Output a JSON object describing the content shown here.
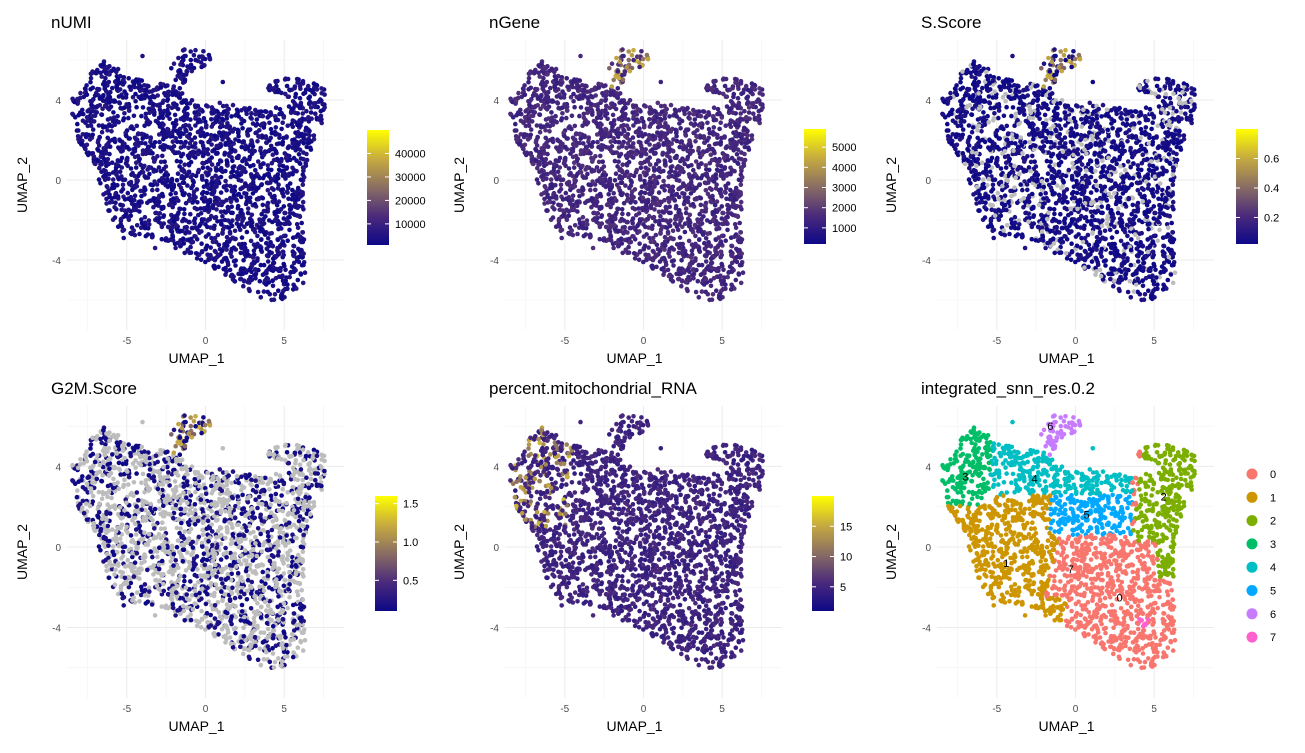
{
  "chart_data": [
    {
      "type": "scatter",
      "title": "nUMI",
      "xlabel": "UMAP_1",
      "ylabel": "UMAP_2",
      "x_ticks": [
        -5,
        0,
        5
      ],
      "y_ticks": [
        -4,
        0,
        4
      ],
      "xlim": [
        -8.8,
        8.8
      ],
      "ylim": [
        -7.5,
        7.0
      ],
      "colorbar": {
        "palette": [
          "#0d0887",
          "#4b2a7b",
          "#8a6e63",
          "#c7ab3f",
          "#ffff00"
        ],
        "min": 1000,
        "max": 50000,
        "ticks": [
          10000,
          20000,
          30000,
          40000
        ],
        "labels": [
          "10000",
          "20000",
          "30000",
          "40000"
        ]
      },
      "point_color_level": 0.05,
      "grey_fraction": 0.0,
      "hotspot": null
    },
    {
      "type": "scatter",
      "title": "nGene",
      "xlabel": "UMAP_1",
      "ylabel": "UMAP_2",
      "x_ticks": [
        -5,
        0,
        5
      ],
      "y_ticks": [
        -4,
        0,
        4
      ],
      "xlim": [
        -8.8,
        8.8
      ],
      "ylim": [
        -7.5,
        7.0
      ],
      "colorbar": {
        "palette": [
          "#0d0887",
          "#4b2a7b",
          "#8a6e63",
          "#c7ab3f",
          "#ffff00"
        ],
        "min": 200,
        "max": 5900,
        "ticks": [
          1000,
          2000,
          3000,
          4000,
          5000
        ],
        "labels": [
          "1000",
          "2000",
          "3000",
          "4000",
          "5000"
        ]
      },
      "point_color_level": 0.22,
      "grey_fraction": 0.0,
      "hotspot": "top"
    },
    {
      "type": "scatter",
      "title": "S.Score",
      "xlabel": "UMAP_1",
      "ylabel": "UMAP_2",
      "x_ticks": [
        -5,
        0,
        5
      ],
      "y_ticks": [
        -4,
        0,
        4
      ],
      "xlim": [
        -8.8,
        8.8
      ],
      "ylim": [
        -7.5,
        7.0
      ],
      "colorbar": {
        "palette": [
          "#0d0887",
          "#4b2a7b",
          "#8a6e63",
          "#c7ab3f",
          "#ffff00"
        ],
        "min": 0.02,
        "max": 0.8,
        "ticks": [
          0.2,
          0.4,
          0.6
        ],
        "labels": [
          "0.2",
          "0.4",
          "0.6"
        ]
      },
      "point_color_level": 0.03,
      "grey_fraction": 0.18,
      "hotspot": "top"
    },
    {
      "type": "scatter",
      "title": "G2M.Score",
      "xlabel": "UMAP_1",
      "ylabel": "UMAP_2",
      "x_ticks": [
        -5,
        0,
        5
      ],
      "y_ticks": [
        -4,
        0,
        4
      ],
      "xlim": [
        -8.8,
        8.8
      ],
      "ylim": [
        -7.5,
        7.0
      ],
      "colorbar": {
        "palette": [
          "#0d0887",
          "#4b2a7b",
          "#8a6e63",
          "#c7ab3f",
          "#ffff00"
        ],
        "min": 0.1,
        "max": 1.6,
        "ticks": [
          0.5,
          1.0,
          1.5
        ],
        "labels": [
          "0.5",
          "1.0",
          "1.5"
        ]
      },
      "point_color_level": 0.03,
      "grey_fraction": 0.6,
      "hotspot": "top"
    },
    {
      "type": "scatter",
      "title": "percent.mitochondrial_RNA",
      "xlabel": "UMAP_1",
      "ylabel": "UMAP_2",
      "x_ticks": [
        -5,
        0,
        5
      ],
      "y_ticks": [
        -4,
        0,
        4
      ],
      "xlim": [
        -8.8,
        8.8
      ],
      "ylim": [
        -7.5,
        7.0
      ],
      "colorbar": {
        "palette": [
          "#0d0887",
          "#4b2a7b",
          "#8a6e63",
          "#c7ab3f",
          "#ffff00"
        ],
        "min": 1,
        "max": 20,
        "ticks": [
          5,
          10,
          15
        ],
        "labels": [
          "5",
          "10",
          "15"
        ]
      },
      "point_color_level": 0.2,
      "grey_fraction": 0.0,
      "hotspot": "left"
    },
    {
      "type": "scatter",
      "title": "integrated_snn_res.0.2",
      "xlabel": "UMAP_1",
      "ylabel": "UMAP_2",
      "x_ticks": [
        -5,
        0,
        5
      ],
      "y_ticks": [
        -4,
        0,
        4
      ],
      "xlim": [
        -8.8,
        8.8
      ],
      "ylim": [
        -7.5,
        7.0
      ],
      "legend": {
        "position": "right",
        "entries": [
          {
            "label": "0",
            "color": "#f8766d"
          },
          {
            "label": "1",
            "color": "#cd9600"
          },
          {
            "label": "2",
            "color": "#7cae00"
          },
          {
            "label": "3",
            "color": "#00be67"
          },
          {
            "label": "4",
            "color": "#00bfc4"
          },
          {
            "label": "5",
            "color": "#00a9ff"
          },
          {
            "label": "6",
            "color": "#c77cff"
          },
          {
            "label": "7",
            "color": "#ff61cc"
          }
        ]
      },
      "cluster_labels": [
        {
          "label": "0",
          "x": 2.8,
          "y": -2.5
        },
        {
          "label": "1",
          "x": -4.4,
          "y": -0.8
        },
        {
          "label": "2",
          "x": 5.6,
          "y": 2.5
        },
        {
          "label": "3",
          "x": -7.0,
          "y": 3.5
        },
        {
          "label": "4",
          "x": -2.6,
          "y": 3.4
        },
        {
          "label": "5",
          "x": 0.7,
          "y": 1.6
        },
        {
          "label": "6",
          "x": -1.6,
          "y": 6.0
        },
        {
          "label": "7",
          "x": -0.3,
          "y": -1.1
        }
      ]
    }
  ]
}
